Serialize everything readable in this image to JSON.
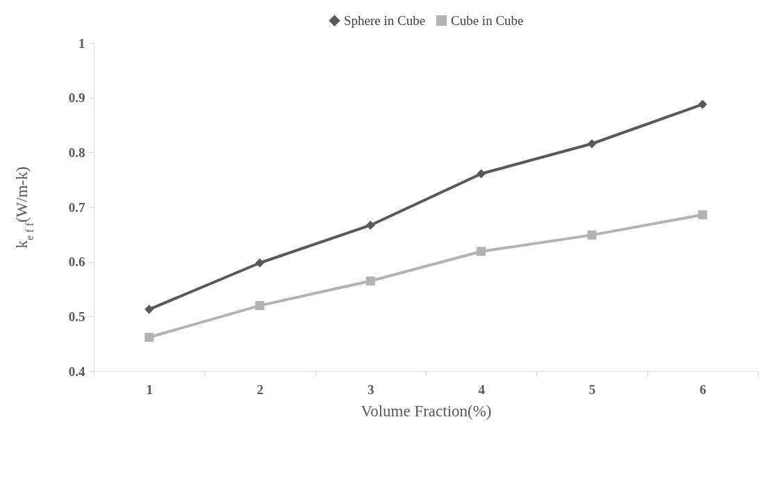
{
  "chart_data": {
    "type": "line",
    "xlabel": "Volume Fraction(%)",
    "ylabel": "k$_{e f f}$(W/m-k)",
    "categories": [
      "1",
      "2",
      "3",
      "4",
      "5",
      "6"
    ],
    "series": [
      {
        "name": "Sphere in Cube",
        "color": "#595959",
        "marker": "diamond",
        "values": [
          0.513,
          0.598,
          0.667,
          0.761,
          0.816,
          0.888
        ]
      },
      {
        "name": "Cube in Cube",
        "color": "#b3b3b3",
        "marker": "square",
        "values": [
          0.462,
          0.52,
          0.565,
          0.619,
          0.649,
          0.686
        ]
      }
    ],
    "ylim": [
      0.4,
      1
    ],
    "yticks": [
      0.4,
      0.5,
      0.6,
      0.7,
      0.8,
      0.9,
      1
    ],
    "grid": false,
    "legend": "top",
    "line_style": "solid"
  }
}
